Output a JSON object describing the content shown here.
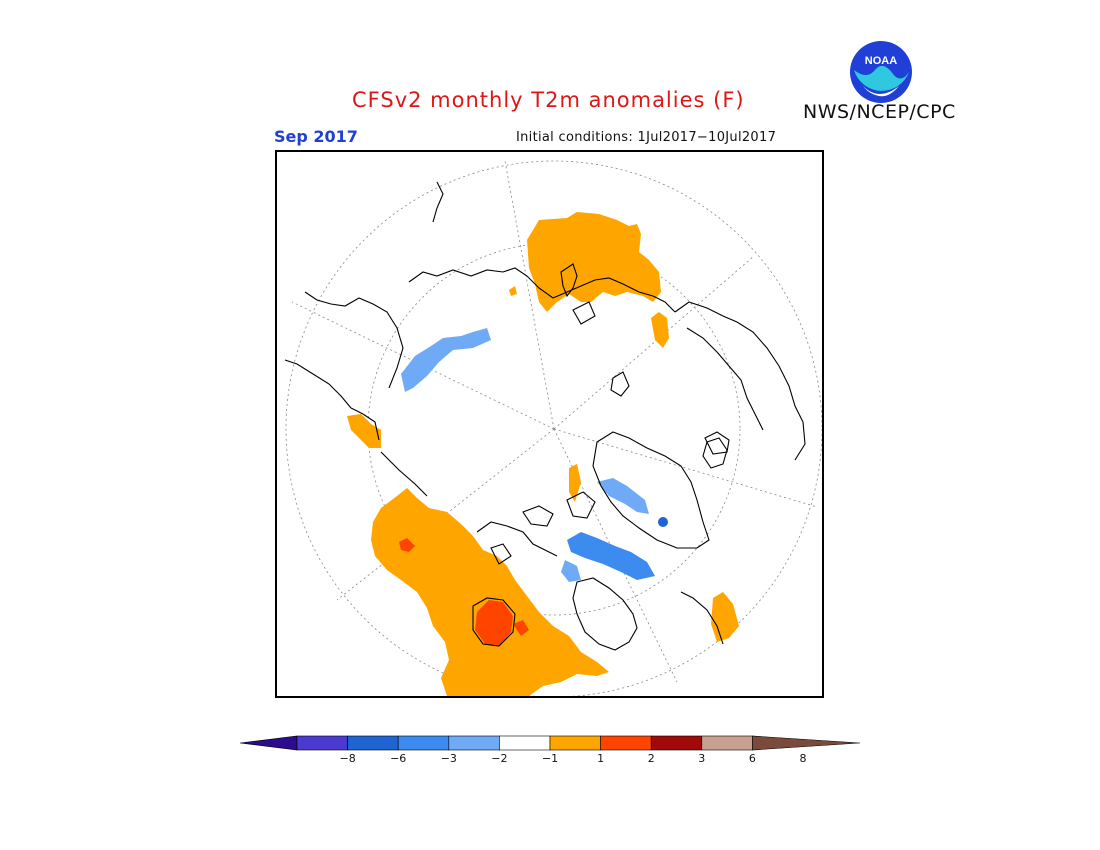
{
  "header": {
    "title": "CFSv2 monthly T2m anomalies (F)",
    "agency": "NWS/NCEP/CPC",
    "month_label": "Sep 2017",
    "initial_conditions": "Initial conditions: 1Jul2017−10Jul2017"
  },
  "logo": {
    "text": "NOAA",
    "icon": "noaa-logo-icon",
    "colors": {
      "outer": "#1f3fd6",
      "inner": "#30c8e0"
    }
  },
  "map": {
    "projection": "polar-stereographic-north",
    "variable": "2m temperature anomaly",
    "units": "F",
    "colors": {
      "warm_1_2": "#ffa500",
      "warm_2_3": "#ff4400",
      "cool_m1_m2": "#6eaaf5",
      "cool_m2_m3": "#3c8cf0",
      "cool_m3_m6": "#1e64d2"
    }
  },
  "colorbar": {
    "labels": [
      "−8",
      "−6",
      "−3",
      "−2",
      "−1",
      "1",
      "2",
      "3",
      "6",
      "8"
    ],
    "colors": [
      "#2a0c8c",
      "#4a3ad0",
      "#1e64d2",
      "#3c8cf0",
      "#6eaaf5",
      "#ffffff",
      "#ffa500",
      "#ff4400",
      "#a00a0a",
      "#c8a090",
      "#7a4a3a"
    ]
  }
}
